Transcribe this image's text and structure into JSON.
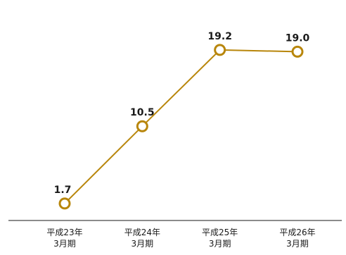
{
  "chart_data": {
    "type": "line",
    "categories": [
      [
        "平成23年",
        "3月期"
      ],
      [
        "平成24年",
        "3月期"
      ],
      [
        "平成25年",
        "3月期"
      ],
      [
        "平成26年",
        "3月期"
      ]
    ],
    "series": [
      {
        "values": [
          1.7,
          10.5,
          19.2,
          19.0
        ],
        "data_labels": [
          "1.7",
          "10.5",
          "19.2",
          "19.0"
        ],
        "color": "#b8860b"
      }
    ],
    "ylim": [
      0,
      22
    ],
    "grid": false,
    "legend": "none",
    "axis_color": "#666666",
    "marker_fill": "#ffffff"
  }
}
